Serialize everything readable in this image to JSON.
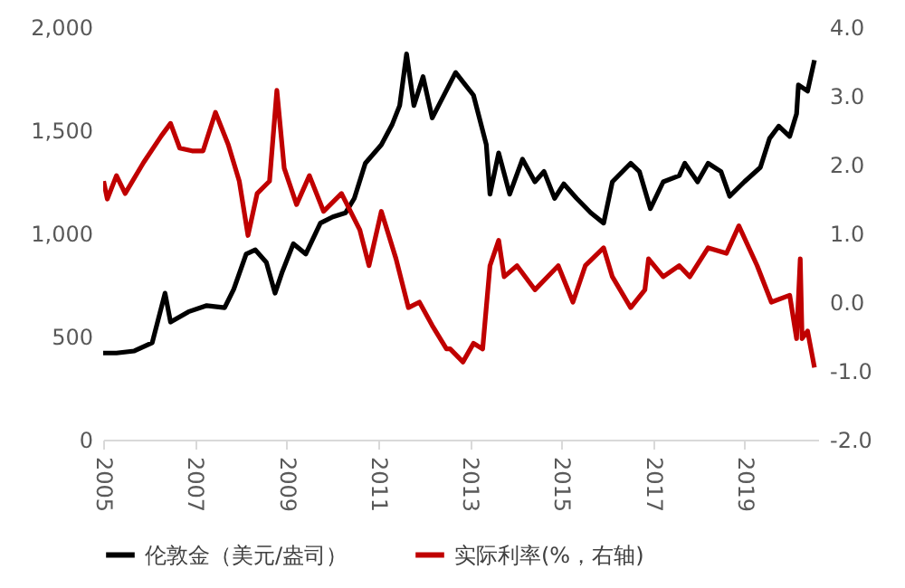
{
  "chart_data": {
    "type": "line",
    "xlim": [
      2005,
      2020.6
    ],
    "xticks": [
      2005,
      2007,
      2009,
      2011,
      2013,
      2015,
      2017,
      2019
    ],
    "ylim": [
      0,
      2000
    ],
    "yticks": [
      0,
      500,
      {
        "value": 1000,
        "label": "1,000"
      },
      {
        "value": 1500,
        "label": "1,500"
      },
      {
        "value": 2000,
        "label": "2,000"
      }
    ],
    "y2lim": [
      -2,
      4
    ],
    "y2ticks": [
      {
        "value": -2,
        "label": "-2.0"
      },
      {
        "value": -1,
        "label": "-1.0"
      },
      {
        "value": 0,
        "label": "0.0"
      },
      {
        "value": 1,
        "label": "1.0"
      },
      {
        "value": 2,
        "label": "2.0"
      },
      {
        "value": 3,
        "label": "3.0"
      },
      {
        "value": 4,
        "label": "4.0"
      }
    ],
    "grid": false,
    "legend": "bottom",
    "series": [
      {
        "name": "伦敦金（美元/盎司）",
        "color": "#000000",
        "x": [
          2005.0,
          2005.29,
          2005.68,
          2006.07,
          2006.35,
          2006.47,
          2006.86,
          2007.26,
          2007.65,
          2007.85,
          2008.12,
          2008.32,
          2008.56,
          2008.75,
          2008.91,
          2009.15,
          2009.42,
          2009.74,
          2010.01,
          2010.29,
          2010.48,
          2010.72,
          2011.07,
          2011.31,
          2011.47,
          2011.62,
          2011.78,
          2011.98,
          2012.18,
          2012.69,
          2013.08,
          2013.36,
          2013.44,
          2013.63,
          2013.87,
          2014.15,
          2014.42,
          2014.62,
          2014.85,
          2015.05,
          2015.33,
          2015.64,
          2015.92,
          2016.11,
          2016.51,
          2016.7,
          2016.94,
          2017.22,
          2017.57,
          2017.69,
          2017.97,
          2018.2,
          2018.48,
          2018.67,
          2018.99,
          2019.34,
          2019.54,
          2019.74,
          2019.98,
          2020.13,
          2020.17,
          2020.37,
          2020.52
        ],
        "values": [
          420,
          420,
          430,
          470,
          710,
          570,
          620,
          650,
          640,
          730,
          900,
          920,
          860,
          710,
          815,
          950,
          900,
          1050,
          1080,
          1100,
          1170,
          1340,
          1430,
          1530,
          1620,
          1870,
          1620,
          1760,
          1560,
          1780,
          1670,
          1430,
          1190,
          1390,
          1190,
          1360,
          1250,
          1300,
          1170,
          1240,
          1170,
          1100,
          1050,
          1250,
          1340,
          1300,
          1120,
          1250,
          1280,
          1340,
          1250,
          1340,
          1300,
          1180,
          1250,
          1320,
          1460,
          1520,
          1470,
          1580,
          1720,
          1690,
          1840
        ]
      },
      {
        "name": "实际利率(%，右轴)",
        "color": "#c00000",
        "axis": "y2",
        "x": [
          2005.01,
          2005.09,
          2005.29,
          2005.48,
          2005.88,
          2006.27,
          2006.47,
          2006.67,
          2006.94,
          2007.18,
          2007.45,
          2007.73,
          2007.97,
          2008.16,
          2008.36,
          2008.63,
          2008.79,
          2008.95,
          2009.22,
          2009.5,
          2009.81,
          2010.2,
          2010.6,
          2010.8,
          2011.07,
          2011.39,
          2011.66,
          2011.9,
          2012.18,
          2012.49,
          2012.57,
          2012.85,
          2013.08,
          2013.28,
          2013.44,
          2013.63,
          2013.75,
          2014.03,
          2014.42,
          2014.93,
          2015.25,
          2015.52,
          2015.92,
          2016.11,
          2016.51,
          2016.82,
          2016.9,
          2017.22,
          2017.57,
          2017.8,
          2018.2,
          2018.6,
          2018.87,
          2019.27,
          2019.58,
          2019.98,
          2020.13,
          2020.21,
          2020.25,
          2020.37,
          2020.52
        ],
        "values": [
          1.76,
          1.5,
          1.84,
          1.58,
          2.03,
          2.42,
          2.6,
          2.24,
          2.2,
          2.2,
          2.76,
          2.29,
          1.76,
          0.97,
          1.58,
          1.76,
          3.08,
          1.95,
          1.42,
          1.84,
          1.32,
          1.58,
          1.05,
          0.53,
          1.32,
          0.63,
          -0.08,
          0.0,
          -0.34,
          -0.68,
          -0.68,
          -0.87,
          -0.6,
          -0.68,
          0.53,
          0.9,
          0.37,
          0.53,
          0.18,
          0.53,
          0.0,
          0.53,
          0.79,
          0.37,
          -0.08,
          0.18,
          0.63,
          0.37,
          0.53,
          0.37,
          0.79,
          0.71,
          1.11,
          0.53,
          0.0,
          0.1,
          -0.53,
          0.63,
          -0.53,
          -0.42,
          -0.95
        ]
      }
    ]
  }
}
